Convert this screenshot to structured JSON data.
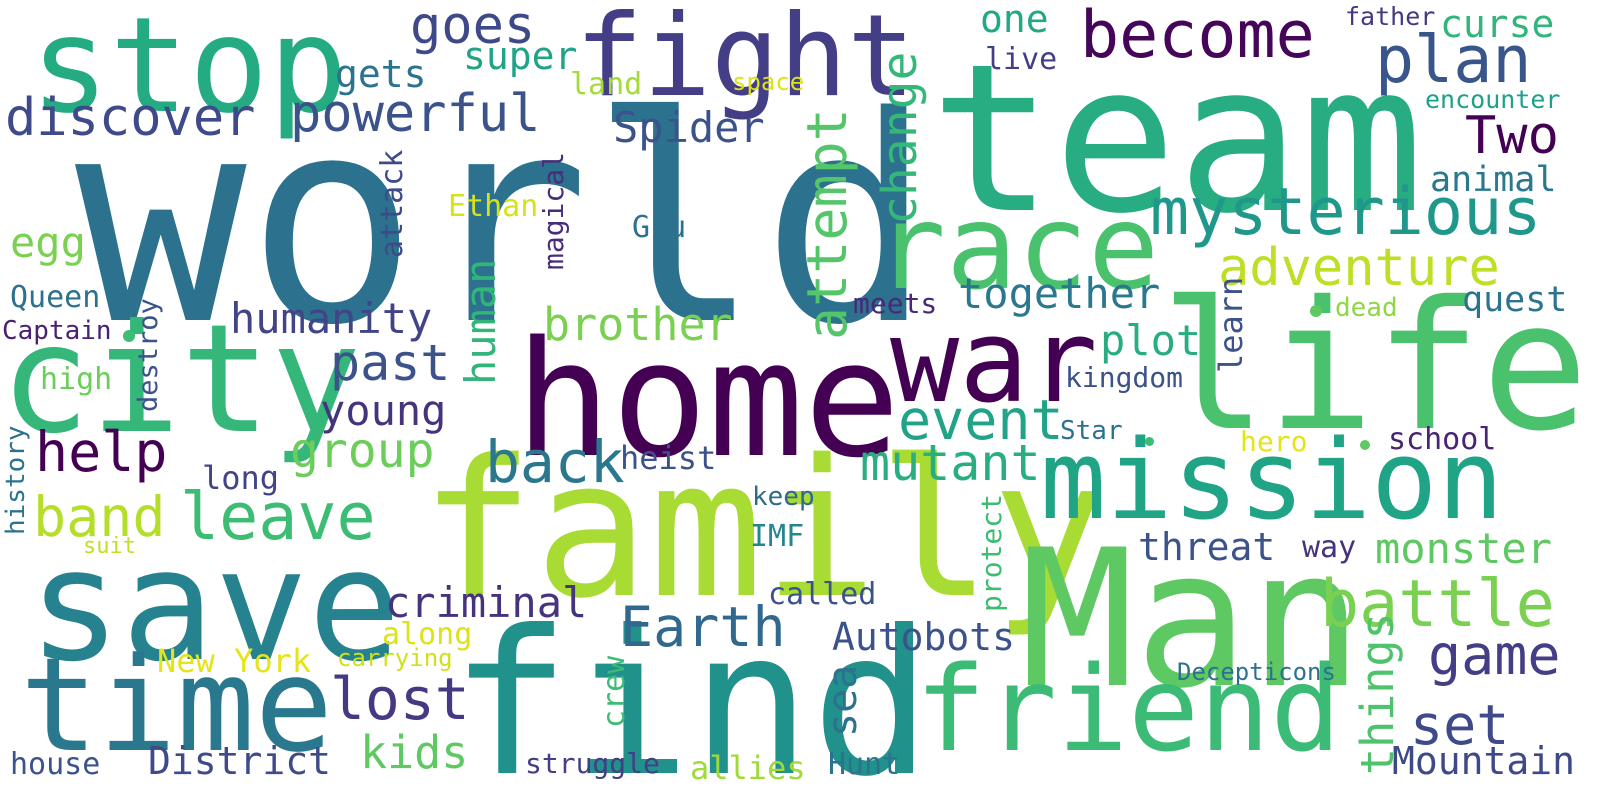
{
  "words": [
    {
      "id": "world",
      "text": "world",
      "color": "#2c728e"
    },
    {
      "id": "team",
      "text": "team",
      "color": "#27ad81"
    },
    {
      "id": "stop",
      "text": "stop",
      "color": "#25ab82"
    },
    {
      "id": "fight",
      "text": "fight",
      "color": "#433e85"
    },
    {
      "id": "home",
      "text": "home",
      "color": "#440154"
    },
    {
      "id": "family",
      "text": "family",
      "color": "#a8db34"
    },
    {
      "id": "find",
      "text": "find",
      "color": "#21918c"
    },
    {
      "id": "man",
      "text": "Man",
      "color": "#5ec962"
    },
    {
      "id": "life",
      "text": "life",
      "color": "#4ac16d"
    },
    {
      "id": "save",
      "text": "save",
      "color": "#26828e"
    },
    {
      "id": "city",
      "text": "city",
      "color": "#35b779"
    },
    {
      "id": "time",
      "text": "time",
      "color": "#2a788e"
    },
    {
      "id": "race",
      "text": "race",
      "color": "#4ac16d"
    },
    {
      "id": "war",
      "text": "war",
      "color": "#440154"
    },
    {
      "id": "mission",
      "text": "mission",
      "color": "#20a486"
    },
    {
      "id": "friend",
      "text": "friend",
      "color": "#3bbb75"
    },
    {
      "id": "become",
      "text": "become",
      "color": "#450559"
    },
    {
      "id": "plan",
      "text": "plan",
      "color": "#39568c"
    },
    {
      "id": "mysterious",
      "text": "mysterious",
      "color": "#1f988b"
    },
    {
      "id": "discover",
      "text": "discover",
      "color": "#3e4a89"
    },
    {
      "id": "powerful",
      "text": "powerful",
      "color": "#3b528b"
    },
    {
      "id": "goes",
      "text": "goes",
      "color": "#3e4989"
    },
    {
      "id": "one",
      "text": "one",
      "color": "#22a884"
    },
    {
      "id": "curse",
      "text": "curse",
      "color": "#31b57b"
    },
    {
      "id": "father",
      "text": "father",
      "color": "#453781"
    },
    {
      "id": "super",
      "text": "super",
      "color": "#20a386"
    },
    {
      "id": "gets",
      "text": "gets",
      "color": "#2c738e"
    },
    {
      "id": "land",
      "text": "land",
      "color": "#a5db36"
    },
    {
      "id": "space",
      "text": "space",
      "color": "#dde318"
    },
    {
      "id": "live",
      "text": "live",
      "color": "#433e85"
    },
    {
      "id": "encounter",
      "text": "encounter",
      "color": "#1fa088"
    },
    {
      "id": "spider",
      "text": "Spider",
      "color": "#3b528b"
    },
    {
      "id": "two",
      "text": "Two",
      "color": "#440154"
    },
    {
      "id": "animal",
      "text": "animal",
      "color": "#2a788e"
    },
    {
      "id": "change",
      "text": "change",
      "color": "#35b779"
    },
    {
      "id": "attempt",
      "text": "attempt",
      "color": "#54c568"
    },
    {
      "id": "attack",
      "text": "attack",
      "color": "#3e4a89"
    },
    {
      "id": "magical",
      "text": "magical",
      "color": "#472d7b"
    },
    {
      "id": "ethan",
      "text": "Ethan",
      "color": "#d8e219"
    },
    {
      "id": "gru",
      "text": "Gru",
      "color": "#2c728e"
    },
    {
      "id": "egg",
      "text": "egg",
      "color": "#7ad151"
    },
    {
      "id": "adventure",
      "text": "adventure",
      "color": "#bddf26"
    },
    {
      "id": "together",
      "text": "together",
      "color": "#2a788e"
    },
    {
      "id": "human",
      "text": "human",
      "color": "#31b57b"
    },
    {
      "id": "brother",
      "text": "brother",
      "color": "#7ad151"
    },
    {
      "id": "humanity",
      "text": "humanity",
      "color": "#414487"
    },
    {
      "id": "queen",
      "text": "Queen",
      "color": "#2c728e"
    },
    {
      "id": "captain",
      "text": "Captain",
      "color": "#482173"
    },
    {
      "id": "destroy",
      "text": "destroy",
      "color": "#3b528b"
    },
    {
      "id": "meets",
      "text": "meets",
      "color": "#482878"
    },
    {
      "id": "learn",
      "text": "learn",
      "color": "#3b528b"
    },
    {
      "id": "dead",
      "text": "dead",
      "color": "#8fd744"
    },
    {
      "id": "quest",
      "text": "quest",
      "color": "#2c738e"
    },
    {
      "id": "plot",
      "text": "plot",
      "color": "#27ad81"
    },
    {
      "id": "kingdom",
      "text": "kingdom",
      "color": "#3b528b"
    },
    {
      "id": "high",
      "text": "high",
      "color": "#6ccd5a"
    },
    {
      "id": "past",
      "text": "past",
      "color": "#3b528b"
    },
    {
      "id": "young",
      "text": "young",
      "color": "#46337e"
    },
    {
      "id": "event",
      "text": "event",
      "color": "#20a386"
    },
    {
      "id": "history",
      "text": "history",
      "color": "#2c728e"
    },
    {
      "id": "help",
      "text": "help",
      "color": "#440154"
    },
    {
      "id": "group",
      "text": "group",
      "color": "#6ccd5a"
    },
    {
      "id": "back",
      "text": "back",
      "color": "#2a788e"
    },
    {
      "id": "mutant",
      "text": "mutant",
      "color": "#29af7f"
    },
    {
      "id": "star",
      "text": "Star",
      "color": "#2c728e"
    },
    {
      "id": "hero",
      "text": "hero",
      "color": "#e5e419"
    },
    {
      "id": "school",
      "text": "school",
      "color": "#482475"
    },
    {
      "id": "heist",
      "text": "heist",
      "color": "#3b528b"
    },
    {
      "id": "long",
      "text": "long",
      "color": "#414487"
    },
    {
      "id": "leave",
      "text": "leave",
      "color": "#3dbc74"
    },
    {
      "id": "band",
      "text": "band",
      "color": "#b5de2b"
    },
    {
      "id": "keep",
      "text": "keep",
      "color": "#31688e"
    },
    {
      "id": "protect",
      "text": "protect",
      "color": "#3dbc74"
    },
    {
      "id": "threat",
      "text": "threat",
      "color": "#3b528b"
    },
    {
      "id": "way",
      "text": "way",
      "color": "#46337e"
    },
    {
      "id": "imf",
      "text": "IMF",
      "color": "#25858e"
    },
    {
      "id": "suit",
      "text": "suit",
      "color": "#c2df23"
    },
    {
      "id": "monster",
      "text": "monster",
      "color": "#5ec962"
    },
    {
      "id": "battle",
      "text": "battle",
      "color": "#7ad151"
    },
    {
      "id": "called",
      "text": "called",
      "color": "#3b528b"
    },
    {
      "id": "criminal",
      "text": "criminal",
      "color": "#46337e"
    },
    {
      "id": "earth",
      "text": "Earth",
      "color": "#31688e"
    },
    {
      "id": "game",
      "text": "game",
      "color": "#433e85"
    },
    {
      "id": "autobots",
      "text": "Autobots",
      "color": "#3b528b"
    },
    {
      "id": "along",
      "text": "along",
      "color": "#dde318"
    },
    {
      "id": "new-york",
      "text": "New York",
      "color": "#e5e419"
    },
    {
      "id": "carrying",
      "text": "carrying",
      "color": "#d0e11c"
    },
    {
      "id": "sea",
      "text": "sea",
      "color": "#2c728e"
    },
    {
      "id": "crew",
      "text": "crew",
      "color": "#3dbc74"
    },
    {
      "id": "things",
      "text": "things",
      "color": "#4ec36b"
    },
    {
      "id": "decepticons",
      "text": "Decepticons",
      "color": "#2c728e"
    },
    {
      "id": "set",
      "text": "set",
      "color": "#3e4a89"
    },
    {
      "id": "lost",
      "text": "lost",
      "color": "#443983"
    },
    {
      "id": "kids",
      "text": "kids",
      "color": "#5ec962"
    },
    {
      "id": "district",
      "text": "District",
      "color": "#3e4a89"
    },
    {
      "id": "house",
      "text": "house",
      "color": "#3b528b"
    },
    {
      "id": "struggle",
      "text": "struggle",
      "color": "#433e85"
    },
    {
      "id": "allies",
      "text": "allies",
      "color": "#a0da39"
    },
    {
      "id": "hunt",
      "text": "Hunt",
      "color": "#2c728e"
    },
    {
      "id": "mountain",
      "text": "Mountain",
      "color": "#3e4989"
    }
  ]
}
